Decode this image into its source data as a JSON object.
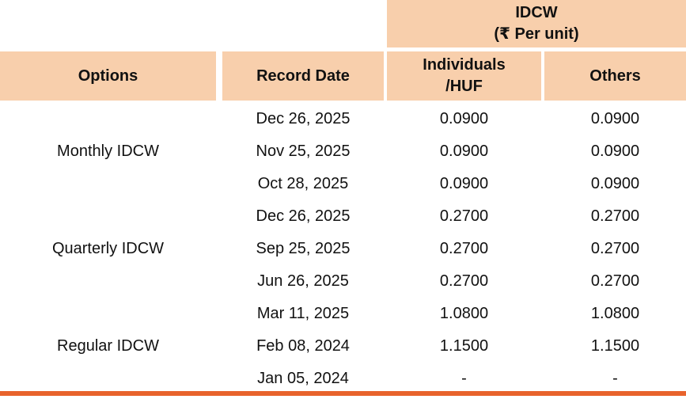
{
  "colors": {
    "header_bg": "#F8CFAC",
    "bottom_line": "#E8632C",
    "text": "#111111"
  },
  "header": {
    "merged_line1": "IDCW",
    "merged_line2": "(₹ Per unit)",
    "options": "Options",
    "record_date": "Record Date",
    "individuals_line1": "Individuals",
    "individuals_line2": "/HUF",
    "others": "Others"
  },
  "chart_data": {
    "type": "table",
    "title": "IDCW (₹ Per unit)",
    "columns": [
      "Options",
      "Record Date",
      "Individuals/HUF",
      "Others"
    ],
    "groups": [
      {
        "option": "Monthly IDCW",
        "rows": [
          {
            "record_date": "Dec 26, 2025",
            "individuals_huf": "0.0900",
            "others": "0.0900"
          },
          {
            "record_date": "Nov 25, 2025",
            "individuals_huf": "0.0900",
            "others": "0.0900"
          },
          {
            "record_date": "Oct 28, 2025",
            "individuals_huf": "0.0900",
            "others": "0.0900"
          }
        ]
      },
      {
        "option": "Quarterly IDCW",
        "rows": [
          {
            "record_date": "Dec 26, 2025",
            "individuals_huf": "0.2700",
            "others": "0.2700"
          },
          {
            "record_date": "Sep 25, 2025",
            "individuals_huf": "0.2700",
            "others": "0.2700"
          },
          {
            "record_date": "Jun 26, 2025",
            "individuals_huf": "0.2700",
            "others": "0.2700"
          }
        ]
      },
      {
        "option": "Regular IDCW",
        "rows": [
          {
            "record_date": "Mar 11, 2025",
            "individuals_huf": "1.0800",
            "others": "1.0800"
          },
          {
            "record_date": "Feb 08, 2024",
            "individuals_huf": "1.1500",
            "others": "1.1500"
          },
          {
            "record_date": "Jan 05, 2024",
            "individuals_huf": "-",
            "others": "-"
          }
        ]
      }
    ]
  }
}
